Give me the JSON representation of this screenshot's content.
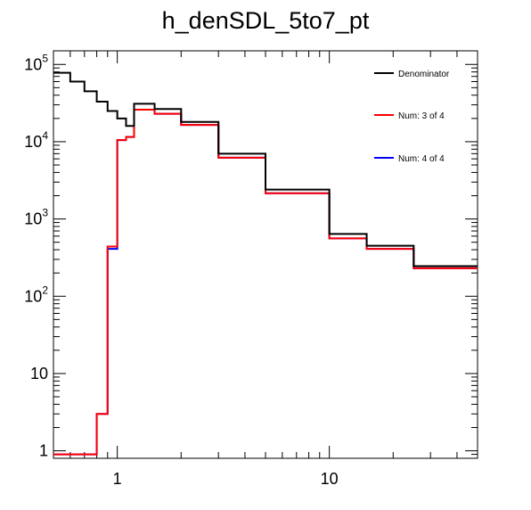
{
  "chart_data": {
    "type": "line",
    "title": "h_denSDL_5to7_pt",
    "xscale": "log",
    "yscale": "log",
    "xlim": [
      0.5,
      50
    ],
    "ylim": [
      0.8,
      150000
    ],
    "grid": false,
    "legend_position": "top-right",
    "x_ticks": [
      {
        "value": 1,
        "label": "1"
      },
      {
        "value": 10,
        "label": "10"
      }
    ],
    "y_ticks": [
      {
        "value": 1,
        "base": "1",
        "exp": ""
      },
      {
        "value": 10,
        "base": "10",
        "exp": ""
      },
      {
        "value": 100,
        "base": "10",
        "exp": "2"
      },
      {
        "value": 1000,
        "base": "10",
        "exp": "3"
      },
      {
        "value": 10000,
        "base": "10",
        "exp": "4"
      },
      {
        "value": 100000,
        "base": "10",
        "exp": "5"
      }
    ],
    "bin_edges": [
      0.5,
      0.6,
      0.7,
      0.8,
      0.9,
      1.0,
      1.1,
      1.2,
      1.5,
      2.0,
      3.0,
      5.0,
      10.0,
      15.0,
      25.0,
      50.0
    ],
    "series": [
      {
        "name": "Denominator",
        "color": "#000000",
        "values": [
          78000,
          60000,
          45000,
          33000,
          25000,
          20000,
          16000,
          31000,
          26500,
          18000,
          7000,
          2400,
          640,
          450,
          245
        ]
      },
      {
        "name": "Num: 3 of 4",
        "color": "#ff0000",
        "values": [
          0.9,
          0.9,
          0.9,
          3,
          440,
          10500,
          11500,
          26000,
          23000,
          16500,
          6200,
          2150,
          560,
          410,
          230
        ]
      },
      {
        "name": "Num: 4 of 4",
        "color": "#0000ff",
        "values": [
          0.9,
          0.9,
          0.9,
          3,
          410,
          10500,
          11500,
          26000,
          23000,
          16500,
          6200,
          2150,
          560,
          410,
          230
        ]
      }
    ]
  }
}
